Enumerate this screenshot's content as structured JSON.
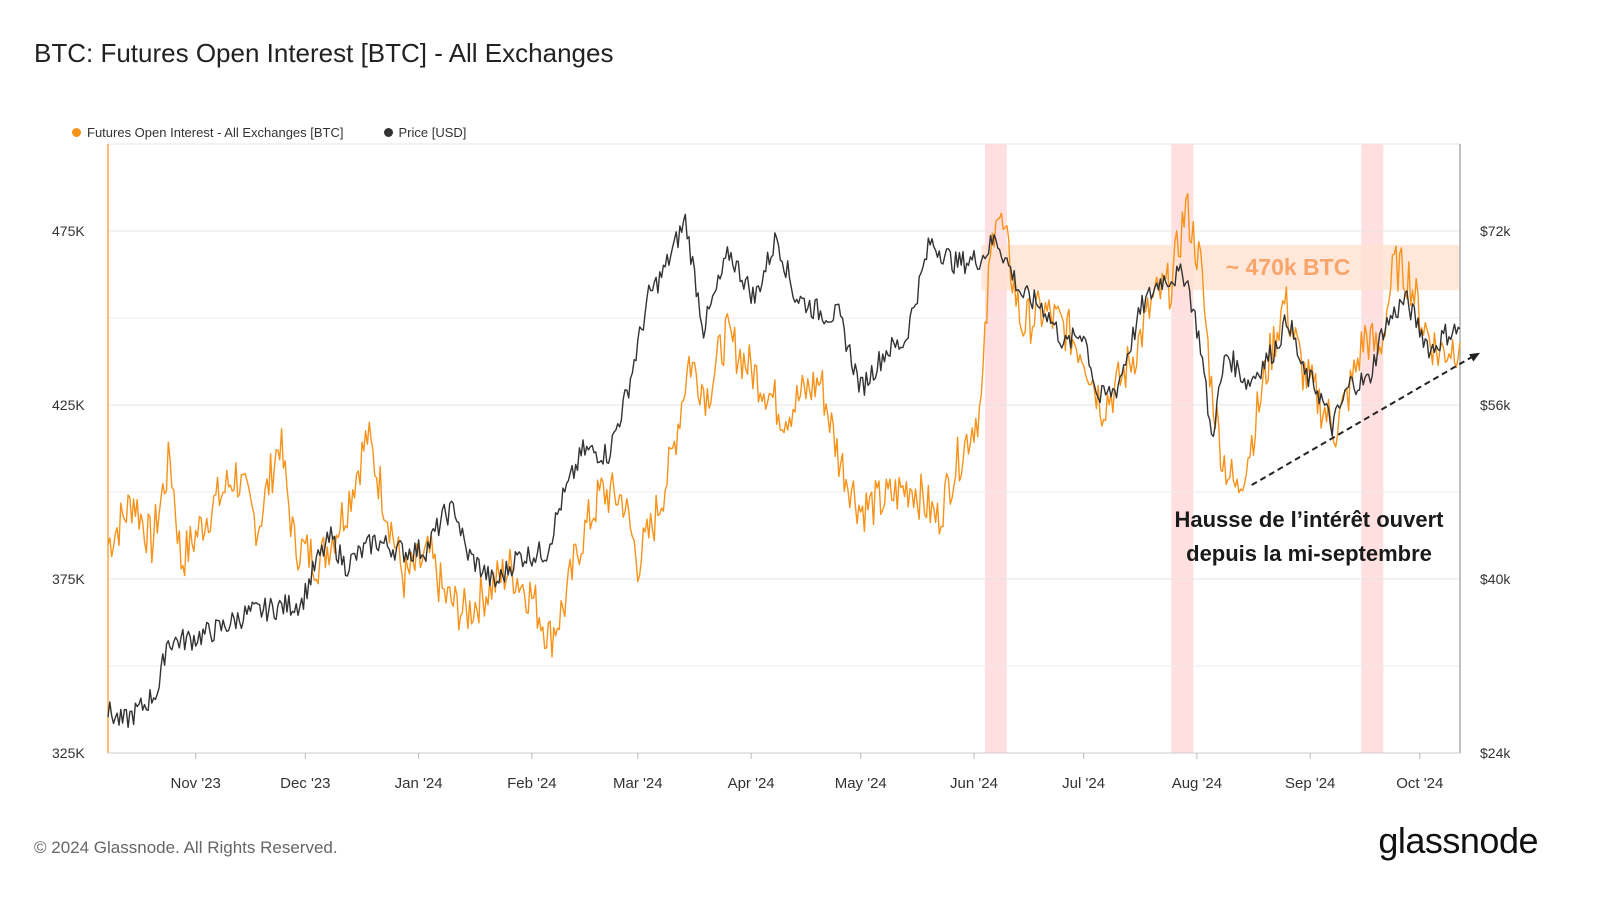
{
  "title": "BTC: Futures Open Interest [BTC] - All Exchanges",
  "legend": [
    {
      "label": "Futures Open Interest - All Exchanges [BTC]",
      "color": "#f7931a"
    },
    {
      "label": "Price [USD]",
      "color": "#333333"
    }
  ],
  "footer": "© 2024 Glassnode. All Rights Reserved.",
  "logo": "glassnode",
  "chart_data": {
    "type": "line",
    "title": "BTC: Futures Open Interest [BTC] - All Exchanges",
    "x_range": [
      "2023-10-08",
      "2024-10-12"
    ],
    "x_ticks": [
      {
        "label": "Nov '23",
        "date": "2023-11-01"
      },
      {
        "label": "Dec '23",
        "date": "2023-12-01"
      },
      {
        "label": "Jan '24",
        "date": "2024-01-01"
      },
      {
        "label": "Feb '24",
        "date": "2024-02-01"
      },
      {
        "label": "Mar '24",
        "date": "2024-03-01"
      },
      {
        "label": "Apr '24",
        "date": "2024-04-01"
      },
      {
        "label": "May '24",
        "date": "2024-05-01"
      },
      {
        "label": "Jun '24",
        "date": "2024-06-01"
      },
      {
        "label": "Jul '24",
        "date": "2024-07-01"
      },
      {
        "label": "Aug '24",
        "date": "2024-08-01"
      },
      {
        "label": "Sep '24",
        "date": "2024-09-01"
      },
      {
        "label": "Oct '24",
        "date": "2024-10-01"
      }
    ],
    "y_left": {
      "ticks": [
        {
          "label": "325K",
          "value": 325000
        },
        {
          "label": "375K",
          "value": 375000
        },
        {
          "label": "425K",
          "value": 425000
        },
        {
          "label": "475K",
          "value": 475000
        }
      ],
      "range": [
        325000,
        500000
      ]
    },
    "y_right": {
      "ticks": [
        {
          "label": "$24k",
          "value": 24000
        },
        {
          "label": "$40k",
          "value": 40000
        },
        {
          "label": "$56k",
          "value": 56000
        },
        {
          "label": "$72k",
          "value": 72000
        }
      ],
      "range": [
        24000,
        80000
      ]
    },
    "grid": true,
    "legend_position": "top-left",
    "series": [
      {
        "name": "Futures Open Interest - All Exchanges [BTC]",
        "color": "#f7931a",
        "axis": "left",
        "points": [
          [
            "2023-10-08",
            385000
          ],
          [
            "2023-10-15",
            398000
          ],
          [
            "2023-10-20",
            385000
          ],
          [
            "2023-10-25",
            410000
          ],
          [
            "2023-10-28",
            380000
          ],
          [
            "2023-11-05",
            395000
          ],
          [
            "2023-11-12",
            405000
          ],
          [
            "2023-11-18",
            390000
          ],
          [
            "2023-11-24",
            415000
          ],
          [
            "2023-11-28",
            385000
          ],
          [
            "2023-12-05",
            380000
          ],
          [
            "2023-12-12",
            395000
          ],
          [
            "2023-12-18",
            416000
          ],
          [
            "2023-12-24",
            392000
          ],
          [
            "2023-12-28",
            375000
          ],
          [
            "2024-01-04",
            382000
          ],
          [
            "2024-01-08",
            370000
          ],
          [
            "2024-01-14",
            365000
          ],
          [
            "2024-01-20",
            372000
          ],
          [
            "2024-01-26",
            378000
          ],
          [
            "2024-02-01",
            370000
          ],
          [
            "2024-02-06",
            358000
          ],
          [
            "2024-02-10",
            368000
          ],
          [
            "2024-02-14",
            385000
          ],
          [
            "2024-02-20",
            400000
          ],
          [
            "2024-02-26",
            398000
          ],
          [
            "2024-03-01",
            380000
          ],
          [
            "2024-03-05",
            390000
          ],
          [
            "2024-03-10",
            408000
          ],
          [
            "2024-03-15",
            438000
          ],
          [
            "2024-03-20",
            428000
          ],
          [
            "2024-03-25",
            445000
          ],
          [
            "2024-03-30",
            438000
          ],
          [
            "2024-04-05",
            430000
          ],
          [
            "2024-04-10",
            422000
          ],
          [
            "2024-04-15",
            428000
          ],
          [
            "2024-04-20",
            432000
          ],
          [
            "2024-04-25",
            410000
          ],
          [
            "2024-05-01",
            395000
          ],
          [
            "2024-05-08",
            398000
          ],
          [
            "2024-05-15",
            402000
          ],
          [
            "2024-05-22",
            392000
          ],
          [
            "2024-05-26",
            405000
          ],
          [
            "2024-05-30",
            415000
          ],
          [
            "2024-06-03",
            425000
          ],
          [
            "2024-06-05",
            460000
          ],
          [
            "2024-06-07",
            483000
          ],
          [
            "2024-06-10",
            470000
          ],
          [
            "2024-06-14",
            448000
          ],
          [
            "2024-06-20",
            452000
          ],
          [
            "2024-06-26",
            447000
          ],
          [
            "2024-07-01",
            440000
          ],
          [
            "2024-07-06",
            425000
          ],
          [
            "2024-07-10",
            430000
          ],
          [
            "2024-07-15",
            440000
          ],
          [
            "2024-07-20",
            455000
          ],
          [
            "2024-07-25",
            460000
          ],
          [
            "2024-07-29",
            482000
          ],
          [
            "2024-08-02",
            465000
          ],
          [
            "2024-08-05",
            430000
          ],
          [
            "2024-08-08",
            410000
          ],
          [
            "2024-08-12",
            400000
          ],
          [
            "2024-08-16",
            415000
          ],
          [
            "2024-08-20",
            435000
          ],
          [
            "2024-08-25",
            455000
          ],
          [
            "2024-08-30",
            435000
          ],
          [
            "2024-09-04",
            425000
          ],
          [
            "2024-09-08",
            418000
          ],
          [
            "2024-09-12",
            430000
          ],
          [
            "2024-09-16",
            445000
          ],
          [
            "2024-09-20",
            440000
          ],
          [
            "2024-09-24",
            465000
          ],
          [
            "2024-09-28",
            462000
          ],
          [
            "2024-10-02",
            448000
          ],
          [
            "2024-10-06",
            440000
          ],
          [
            "2024-10-12",
            443000
          ]
        ]
      },
      {
        "name": "Price [USD]",
        "color": "#333333",
        "axis": "right",
        "points": [
          [
            "2023-10-08",
            27800
          ],
          [
            "2023-10-12",
            26800
          ],
          [
            "2023-10-18",
            28400
          ],
          [
            "2023-10-22",
            30000
          ],
          [
            "2023-10-24",
            34200
          ],
          [
            "2023-10-31",
            34500
          ],
          [
            "2023-11-08",
            35500
          ],
          [
            "2023-11-15",
            36800
          ],
          [
            "2023-11-22",
            37300
          ],
          [
            "2023-11-30",
            37800
          ],
          [
            "2023-12-04",
            41500
          ],
          [
            "2023-12-08",
            43800
          ],
          [
            "2023-12-12",
            41200
          ],
          [
            "2023-12-20",
            43500
          ],
          [
            "2023-12-28",
            42500
          ],
          [
            "2024-01-03",
            42700
          ],
          [
            "2024-01-08",
            45800
          ],
          [
            "2024-01-11",
            46500
          ],
          [
            "2024-01-14",
            42500
          ],
          [
            "2024-01-22",
            39500
          ],
          [
            "2024-01-28",
            42000
          ],
          [
            "2024-02-05",
            42500
          ],
          [
            "2024-02-09",
            47000
          ],
          [
            "2024-02-15",
            51800
          ],
          [
            "2024-02-22",
            51500
          ],
          [
            "2024-02-27",
            57000
          ],
          [
            "2024-03-04",
            66000
          ],
          [
            "2024-03-08",
            68200
          ],
          [
            "2024-03-14",
            73000
          ],
          [
            "2024-03-19",
            63000
          ],
          [
            "2024-03-26",
            70000
          ],
          [
            "2024-04-02",
            65800
          ],
          [
            "2024-04-08",
            71500
          ],
          [
            "2024-04-13",
            66000
          ],
          [
            "2024-04-20",
            64500
          ],
          [
            "2024-04-25",
            64200
          ],
          [
            "2024-05-01",
            57500
          ],
          [
            "2024-05-08",
            61000
          ],
          [
            "2024-05-13",
            61800
          ],
          [
            "2024-05-20",
            71000
          ],
          [
            "2024-05-27",
            69000
          ],
          [
            "2024-06-03",
            69500
          ],
          [
            "2024-06-07",
            71400
          ],
          [
            "2024-06-14",
            66200
          ],
          [
            "2024-06-20",
            65000
          ],
          [
            "2024-06-26",
            61500
          ],
          [
            "2024-07-01",
            62800
          ],
          [
            "2024-07-05",
            56500
          ],
          [
            "2024-07-10",
            57500
          ],
          [
            "2024-07-17",
            65000
          ],
          [
            "2024-07-22",
            67500
          ],
          [
            "2024-07-29",
            68000
          ],
          [
            "2024-08-02",
            61500
          ],
          [
            "2024-08-05",
            53000
          ],
          [
            "2024-08-09",
            60800
          ],
          [
            "2024-08-15",
            58000
          ],
          [
            "2024-08-22",
            61000
          ],
          [
            "2024-08-26",
            64000
          ],
          [
            "2024-08-30",
            59000
          ],
          [
            "2024-09-03",
            57500
          ],
          [
            "2024-09-07",
            54000
          ],
          [
            "2024-09-12",
            58000
          ],
          [
            "2024-09-17",
            58200
          ],
          [
            "2024-09-21",
            63000
          ],
          [
            "2024-09-27",
            65800
          ],
          [
            "2024-10-01",
            63000
          ],
          [
            "2024-10-04",
            61000
          ],
          [
            "2024-10-08",
            62500
          ],
          [
            "2024-10-12",
            63000
          ]
        ]
      }
    ],
    "highlight_bands": [
      {
        "start": "2024-06-04",
        "end": "2024-06-10",
        "color": "#ffd9d9"
      },
      {
        "start": "2024-07-25",
        "end": "2024-07-31",
        "color": "#ffd9d9"
      },
      {
        "start": "2024-09-15",
        "end": "2024-09-21",
        "color": "#ffd9d9"
      }
    ],
    "range_band": {
      "label": "~ 470k BTC",
      "start": "2024-06-03",
      "end": "2024-10-12",
      "y_low": 458000,
      "y_high": 471000,
      "color": "#ffe2cf",
      "label_color": "#f7a56b"
    },
    "annotations": [
      {
        "text_line1": "Hausse de l’intérêt ouvert",
        "text_line2": "depuis la mi-septembre",
        "arrow_from": [
          "2024-08-16",
          402000
        ],
        "arrow_to": [
          "2024-10-12",
          440000
        ]
      }
    ]
  }
}
